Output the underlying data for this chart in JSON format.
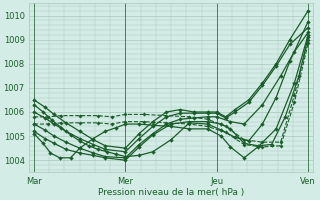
{
  "bg_color": "#d4ece6",
  "grid_color": "#a8c8bc",
  "line_color": "#1a5c2a",
  "xlabel": "Pression niveau de la mer( hPa )",
  "xtick_labels": [
    "Mar",
    "Mer",
    "Jeu",
    "Ven"
  ],
  "xtick_positions": [
    0,
    1,
    2,
    3
  ],
  "ylim": [
    1003.5,
    1010.5
  ],
  "yticks": [
    1004,
    1005,
    1006,
    1007,
    1008,
    1009,
    1010
  ],
  "vlines": [
    0,
    1,
    2,
    3
  ],
  "series": [
    {
      "x": [
        0.0,
        0.12,
        0.22,
        0.35,
        0.5,
        0.65,
        0.78,
        1.0,
        1.15,
        1.3,
        1.45,
        1.6,
        1.75,
        1.9,
        2.0,
        2.1,
        2.2,
        2.35,
        2.5,
        2.65,
        2.8,
        3.0
      ],
      "y": [
        1006.5,
        1006.2,
        1005.9,
        1005.55,
        1005.2,
        1004.85,
        1004.6,
        1004.5,
        1005.1,
        1005.6,
        1006.0,
        1006.1,
        1006.0,
        1006.0,
        1006.0,
        1005.8,
        1006.1,
        1006.5,
        1007.2,
        1008.0,
        1009.0,
        1010.2
      ],
      "style": "-",
      "marker": "D",
      "markersize": 2.0,
      "linewidth": 0.9
    },
    {
      "x": [
        0.0,
        0.12,
        0.22,
        0.35,
        0.5,
        0.65,
        0.78,
        1.0,
        1.15,
        1.3,
        1.45,
        1.6,
        1.75,
        1.9,
        2.0,
        2.1,
        2.2,
        2.35,
        2.5,
        2.65,
        2.8,
        3.0
      ],
      "y": [
        1006.0,
        1005.75,
        1005.5,
        1005.2,
        1004.9,
        1004.65,
        1004.45,
        1004.35,
        1004.9,
        1005.4,
        1005.8,
        1005.95,
        1005.95,
        1005.95,
        1005.95,
        1005.75,
        1006.0,
        1006.4,
        1007.1,
        1007.9,
        1008.8,
        1009.5
      ],
      "style": "-",
      "marker": "D",
      "markersize": 2.0,
      "linewidth": 0.9
    },
    {
      "x": [
        0.0,
        0.12,
        0.22,
        0.35,
        0.5,
        0.65,
        0.78,
        1.0,
        1.15,
        1.3,
        1.45,
        1.6,
        1.75,
        1.9,
        2.0,
        2.15,
        2.3,
        2.5,
        2.7,
        2.85,
        3.0
      ],
      "y": [
        1005.5,
        1005.25,
        1005.0,
        1004.75,
        1004.5,
        1004.3,
        1004.15,
        1004.1,
        1004.65,
        1005.1,
        1005.5,
        1005.7,
        1005.75,
        1005.8,
        1005.8,
        1005.6,
        1005.5,
        1006.3,
        1007.5,
        1008.5,
        1009.3
      ],
      "style": "-",
      "marker": "D",
      "markersize": 2.0,
      "linewidth": 0.9
    },
    {
      "x": [
        0.0,
        0.12,
        0.22,
        0.35,
        0.5,
        0.65,
        0.78,
        1.0,
        1.15,
        1.3,
        1.5,
        1.7,
        1.9,
        2.05,
        2.15,
        2.3,
        2.45,
        2.6,
        2.75,
        2.9,
        3.0
      ],
      "y": [
        1005.2,
        1004.9,
        1004.7,
        1004.45,
        1004.3,
        1004.2,
        1004.1,
        1004.0,
        1004.55,
        1005.05,
        1005.5,
        1005.6,
        1005.6,
        1005.5,
        1005.3,
        1004.7,
        1004.6,
        1004.65,
        1005.8,
        1007.5,
        1009.1
      ],
      "style": "-",
      "marker": "D",
      "markersize": 2.0,
      "linewidth": 0.9
    },
    {
      "x": [
        0.0,
        0.15,
        0.3,
        0.5,
        0.7,
        0.85,
        1.0,
        1.2,
        1.45,
        1.7,
        1.9,
        2.1,
        2.3,
        2.5,
        2.7,
        2.85,
        3.0
      ],
      "y": [
        1005.8,
        1005.8,
        1005.85,
        1005.85,
        1005.85,
        1005.8,
        1005.9,
        1005.9,
        1005.85,
        1005.8,
        1005.7,
        1005.4,
        1004.85,
        1004.75,
        1004.75,
        1006.7,
        1009.0
      ],
      "style": "--",
      "marker": "D",
      "markersize": 1.8,
      "linewidth": 0.8
    },
    {
      "x": [
        0.0,
        0.15,
        0.3,
        0.5,
        0.7,
        0.85,
        1.0,
        1.2,
        1.45,
        1.7,
        1.9,
        2.1,
        2.3,
        2.5,
        2.7,
        2.85,
        3.0
      ],
      "y": [
        1005.5,
        1005.5,
        1005.55,
        1005.55,
        1005.55,
        1005.5,
        1005.6,
        1005.6,
        1005.55,
        1005.5,
        1005.4,
        1005.15,
        1004.65,
        1004.55,
        1004.6,
        1006.4,
        1008.85
      ],
      "style": "--",
      "marker": "D",
      "markersize": 1.8,
      "linewidth": 0.8
    },
    {
      "x": [
        0.0,
        0.1,
        0.2,
        0.3,
        0.4,
        0.5,
        0.6,
        0.7,
        0.8,
        0.9,
        1.0,
        1.15,
        1.3,
        1.5,
        1.7,
        1.9,
        2.05,
        2.2,
        2.35,
        2.5,
        2.65,
        2.8,
        3.0
      ],
      "y": [
        1006.3,
        1006.0,
        1005.65,
        1005.35,
        1005.05,
        1004.8,
        1004.6,
        1004.45,
        1004.35,
        1004.25,
        1004.15,
        1004.2,
        1004.35,
        1004.85,
        1005.55,
        1005.5,
        1005.25,
        1004.95,
        1004.8,
        1005.5,
        1006.6,
        1008.1,
        1009.75
      ],
      "style": "-",
      "marker": "D",
      "markersize": 2.0,
      "linewidth": 0.9
    },
    {
      "x": [
        0.0,
        0.1,
        0.18,
        0.28,
        0.4,
        0.5,
        0.65,
        0.78,
        0.9,
        1.0,
        1.15,
        1.3,
        1.5,
        1.7,
        1.9,
        2.05,
        2.15,
        2.3,
        2.45,
        2.65,
        2.85,
        3.0
      ],
      "y": [
        1005.1,
        1004.7,
        1004.3,
        1004.1,
        1004.1,
        1004.5,
        1004.9,
        1005.2,
        1005.35,
        1005.5,
        1005.5,
        1005.45,
        1005.4,
        1005.3,
        1005.3,
        1005.0,
        1004.55,
        1004.1,
        1004.55,
        1005.3,
        1007.2,
        1009.2
      ],
      "style": "-",
      "marker": "D",
      "markersize": 2.0,
      "linewidth": 0.9
    }
  ]
}
